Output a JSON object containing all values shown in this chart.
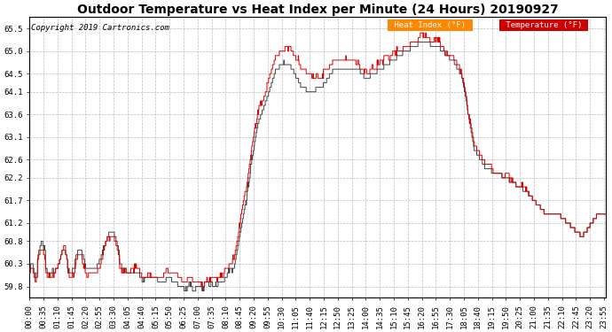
{
  "title": "Outdoor Temperature vs Heat Index per Minute (24 Hours) 20190927",
  "copyright": "Copyright 2019 Cartronics.com",
  "legend_heat_index": "Heat Index (°F)",
  "legend_temperature": "Temperature (°F)",
  "yticks": [
    59.8,
    60.3,
    60.8,
    61.2,
    61.7,
    62.2,
    62.6,
    63.1,
    63.6,
    64.1,
    64.5,
    65.0,
    65.5
  ],
  "ylim": [
    59.55,
    65.75
  ],
  "background_color": "#ffffff",
  "grid_color": "#bbbbbb",
  "line_color_red": "#dd0000",
  "line_color_dark": "#444444",
  "title_fontsize": 10,
  "copyright_fontsize": 6.5,
  "tick_fontsize": 6.5,
  "legend_heat_bg": "#ff8800",
  "legend_temp_bg": "#cc0000"
}
